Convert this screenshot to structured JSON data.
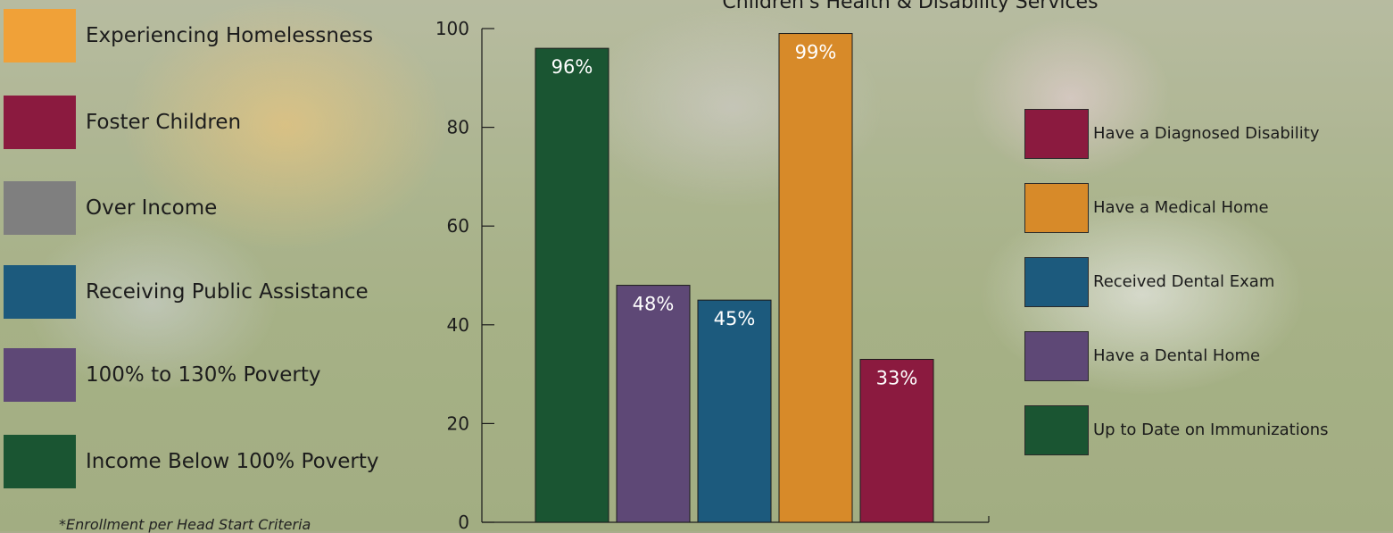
{
  "left_legend": {
    "items": [
      {
        "label": "Experiencing Homelessness",
        "color": "#F0A138"
      },
      {
        "label": "Foster Children",
        "color": "#8B1A3F"
      },
      {
        "label": "Over Income",
        "color": "#7F7F7F"
      },
      {
        "label": "Receiving Public Assistance",
        "color": "#1C5A7D"
      },
      {
        "label": "100% to 130% Poverty",
        "color": "#5E4876"
      },
      {
        "label": "Income Below 100% Poverty",
        "color": "#1A5532"
      }
    ],
    "footnote": "*Enrollment per Head Start Criteria"
  },
  "chart_data": {
    "type": "bar",
    "title": "Children's Health & Disability Services",
    "xlabel": "",
    "ylabel": "",
    "ylim": [
      0,
      100
    ],
    "yticks": [
      0,
      20,
      40,
      60,
      80,
      100
    ],
    "grid": false,
    "legend": "right",
    "bars": [
      {
        "series": "Up to Date on Immunizations",
        "value": 96,
        "label": "96%",
        "color": "#1A5532"
      },
      {
        "series": "Have a Dental Home",
        "value": 48,
        "label": "48%",
        "color": "#5E4876"
      },
      {
        "series": "Received Dental Exam",
        "value": 45,
        "label": "45%",
        "color": "#1C5A7D"
      },
      {
        "series": "Have a Medical Home",
        "value": 99,
        "label": "99%",
        "color": "#D78A29"
      },
      {
        "series": "Have a Diagnosed Disability",
        "value": 33,
        "label": "33%",
        "color": "#8B1A3F"
      }
    ],
    "legend_entries": [
      {
        "label": "Have a Diagnosed Disability",
        "color": "#8B1A3F"
      },
      {
        "label": "Have a Medical Home",
        "color": "#D78A29"
      },
      {
        "label": "Received Dental Exam",
        "color": "#1C5A7D"
      },
      {
        "label": "Have a Dental Home",
        "color": "#5E4876"
      },
      {
        "label": "Up to Date on Immunizations",
        "color": "#1A5532"
      }
    ]
  }
}
